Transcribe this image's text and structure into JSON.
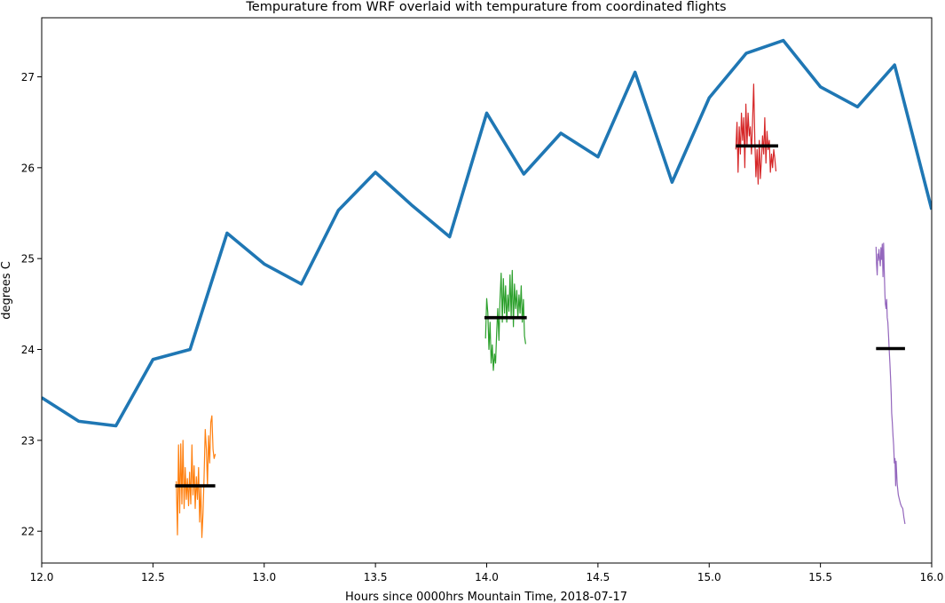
{
  "chart_data": {
    "type": "line",
    "title": "Tempurature from WRF overlaid with tempurature from coordinated flights",
    "xlabel": "Hours since 0000hrs Mountain Time, 2018-07-17",
    "ylabel": "degrees C",
    "xlim": [
      12.0,
      16.0
    ],
    "ylim": [
      21.65,
      27.65
    ],
    "xticks": [
      12.0,
      12.5,
      13.0,
      13.5,
      14.0,
      14.5,
      15.0,
      15.5,
      16.0
    ],
    "xtick_labels": [
      "12.0",
      "12.5",
      "13.0",
      "13.5",
      "14.0",
      "14.5",
      "15.0",
      "15.5",
      "16.0"
    ],
    "yticks": [
      22,
      23,
      24,
      25,
      26,
      27
    ],
    "ytick_labels": [
      "22",
      "23",
      "24",
      "25",
      "26",
      "27"
    ],
    "grid": false,
    "series": [
      {
        "color": "#1f77b4",
        "style": "thick",
        "x": [
          12.0,
          12.1667,
          12.3333,
          12.5,
          12.6667,
          12.8333,
          13.0,
          13.1667,
          13.3333,
          13.5,
          13.6667,
          13.8333,
          14.0,
          14.1667,
          14.3333,
          14.5,
          14.6667,
          14.8333,
          15.0,
          15.1667,
          15.3333,
          15.5,
          15.6667,
          15.8333,
          16.0
        ],
        "y": [
          23.47,
          23.21,
          23.16,
          23.89,
          24.0,
          25.28,
          24.94,
          24.72,
          25.53,
          25.95,
          25.58,
          25.24,
          26.6,
          25.93,
          26.38,
          26.12,
          27.05,
          25.84,
          26.77,
          27.26,
          27.4,
          26.89,
          26.67,
          27.13,
          25.54
        ]
      },
      {
        "color": "#ff7f0e",
        "style": "thin",
        "x": [
          12.605,
          12.61,
          12.615,
          12.62,
          12.625,
          12.63,
          12.635,
          12.64,
          12.645,
          12.65,
          12.655,
          12.66,
          12.665,
          12.67,
          12.675,
          12.68,
          12.685,
          12.69,
          12.695,
          12.7,
          12.705,
          12.71,
          12.715,
          12.72,
          12.725,
          12.73,
          12.735,
          12.74,
          12.745,
          12.75,
          12.755,
          12.76,
          12.765,
          12.77,
          12.775,
          12.78
        ],
        "y": [
          22.55,
          21.96,
          22.95,
          22.2,
          22.96,
          22.3,
          23.0,
          22.25,
          22.7,
          22.35,
          22.58,
          22.28,
          22.65,
          22.3,
          22.95,
          22.4,
          22.72,
          22.25,
          22.6,
          22.35,
          22.7,
          22.1,
          22.5,
          21.93,
          22.2,
          22.6,
          23.12,
          22.9,
          22.5,
          23.05,
          22.75,
          23.2,
          23.27,
          22.9,
          22.8,
          22.85
        ]
      },
      {
        "color": "#2ca02c",
        "style": "thin",
        "x": [
          13.995,
          14.0,
          14.005,
          14.01,
          14.015,
          14.02,
          14.025,
          14.03,
          14.035,
          14.04,
          14.045,
          14.05,
          14.055,
          14.06,
          14.065,
          14.07,
          14.075,
          14.08,
          14.085,
          14.09,
          14.095,
          14.1,
          14.105,
          14.11,
          14.115,
          14.12,
          14.125,
          14.13,
          14.135,
          14.14,
          14.145,
          14.15,
          14.155,
          14.16,
          14.165,
          14.17,
          14.175
        ],
        "y": [
          24.12,
          24.56,
          24.4,
          24.0,
          24.3,
          23.85,
          24.05,
          23.77,
          23.95,
          23.85,
          24.2,
          24.45,
          24.1,
          24.55,
          24.84,
          24.3,
          24.78,
          24.4,
          24.7,
          24.3,
          24.6,
          24.42,
          24.82,
          24.35,
          24.87,
          24.25,
          24.72,
          24.45,
          24.65,
          24.35,
          24.6,
          24.4,
          24.7,
          24.3,
          24.55,
          24.15,
          24.06
        ]
      },
      {
        "color": "#d62728",
        "style": "thin",
        "x": [
          15.12,
          15.125,
          15.13,
          15.135,
          15.14,
          15.145,
          15.15,
          15.155,
          15.16,
          15.165,
          15.17,
          15.175,
          15.18,
          15.185,
          15.19,
          15.195,
          15.2,
          15.205,
          15.21,
          15.215,
          15.22,
          15.225,
          15.23,
          15.235,
          15.24,
          15.245,
          15.25,
          15.255,
          15.26,
          15.265,
          15.27,
          15.275,
          15.28,
          15.285,
          15.29,
          15.295,
          15.3
        ],
        "y": [
          26.2,
          26.5,
          25.95,
          26.45,
          26.15,
          26.6,
          26.3,
          26.55,
          26.0,
          26.7,
          26.25,
          26.6,
          26.35,
          26.45,
          26.15,
          26.5,
          26.92,
          26.3,
          25.9,
          26.2,
          25.82,
          26.3,
          25.88,
          26.1,
          26.35,
          26.15,
          26.55,
          26.05,
          26.4,
          26.2,
          26.3,
          25.95,
          26.15,
          26.0,
          26.2,
          26.1,
          25.96
        ]
      },
      {
        "color": "#9467bd",
        "style": "thin",
        "x": [
          15.75,
          15.752,
          15.755,
          15.758,
          15.76,
          15.763,
          15.766,
          15.769,
          15.772,
          15.775,
          15.778,
          15.781,
          15.784,
          15.787,
          15.79,
          15.792,
          15.795,
          15.798,
          15.8,
          15.803,
          15.806,
          15.809,
          15.812,
          15.815,
          15.818,
          15.82,
          15.823,
          15.826,
          15.829,
          15.832,
          15.835,
          15.838,
          15.84,
          15.845,
          15.85,
          15.855,
          15.86,
          15.865,
          15.87,
          15.875,
          15.88
        ],
        "y": [
          25.13,
          24.95,
          24.82,
          25.05,
          24.98,
          25.1,
          25.0,
          24.92,
          25.12,
          24.99,
          25.16,
          24.8,
          25.17,
          24.85,
          24.6,
          24.5,
          24.45,
          24.55,
          24.35,
          24.3,
          24.15,
          24.0,
          23.85,
          23.7,
          23.5,
          23.3,
          23.2,
          23.05,
          22.95,
          22.75,
          22.8,
          22.5,
          22.77,
          22.52,
          22.4,
          22.35,
          22.3,
          22.27,
          22.25,
          22.15,
          22.08
        ]
      }
    ],
    "mean_lines": [
      {
        "color": "#000000",
        "x": [
          12.6,
          12.78
        ],
        "y": 22.5
      },
      {
        "color": "#000000",
        "x": [
          13.99,
          14.18
        ],
        "y": 24.35
      },
      {
        "color": "#000000",
        "x": [
          15.12,
          15.31
        ],
        "y": 26.24
      },
      {
        "color": "#000000",
        "x": [
          15.75,
          15.88
        ],
        "y": 24.01
      }
    ]
  }
}
